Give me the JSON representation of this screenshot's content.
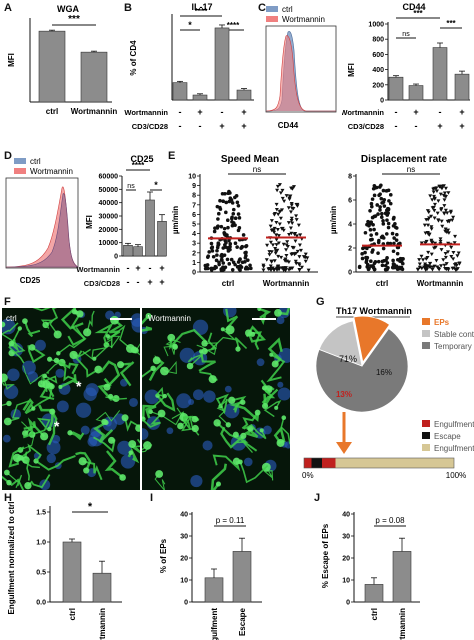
{
  "panels": {
    "A": "A",
    "B": "B",
    "C": "C",
    "D": "D",
    "E": "E",
    "F": "F",
    "G": "G",
    "H": "H",
    "I": "I",
    "J": "J"
  },
  "colors": {
    "bar": "#8c8c8c",
    "ctrl_hist": "#7f9cc5",
    "wort_hist": "#f08080",
    "overlap": "#9a6a8c",
    "pie_temp": "#7a7a7a",
    "pie_stable": "#c4c4c4",
    "pie_ep": "#e8772a",
    "engulf": "#c0201e",
    "escape": "#111111",
    "attempt": "#d6c795",
    "scatter_mean": "#c0201e"
  },
  "panelA": {
    "title": "WGA",
    "ylabel": "MFI",
    "sig": "***",
    "chart_data": {
      "type": "bar",
      "categories": [
        "ctrl",
        "Wortmannin"
      ],
      "values": [
        1080,
        760
      ],
      "errors": [
        15,
        15
      ],
      "ylim": [
        0,
        1250
      ]
    }
  },
  "panelB": {
    "title": "IL-17",
    "ylabel": "% of CD4",
    "row1_label": "Wortmannin",
    "row2_label": "CD3/CD28",
    "row1": [
      "-",
      "+",
      "-",
      "+"
    ],
    "row2": [
      "-",
      "-",
      "+",
      "+"
    ],
    "sig": [
      "****",
      "*",
      "****"
    ],
    "chart_data": {
      "type": "bar",
      "categories": [
        "-/-",
        "+/-",
        "-/+",
        "+/+"
      ],
      "values": [
        7,
        2,
        29,
        4
      ],
      "errors": [
        0.5,
        0.5,
        1.2,
        0.6
      ],
      "ylim": [
        0,
        33
      ]
    }
  },
  "panelC": {
    "legend": [
      "ctrl",
      "Wortmannin"
    ],
    "xlabel": "CD44",
    "title": "CD44",
    "ylabel": "MFI",
    "row1_label": "Wortmannin",
    "row2_label": "CD3/CD28",
    "row1": [
      "-",
      "+",
      "-",
      "+"
    ],
    "row2": [
      "-",
      "-",
      "+",
      "+"
    ],
    "sig": [
      "***",
      "ns",
      "***"
    ],
    "chart_data": {
      "type": "bar",
      "categories": [
        "-/-",
        "+/-",
        "-/+",
        "+/+"
      ],
      "values": [
        300,
        190,
        690,
        340
      ],
      "errors": [
        20,
        20,
        60,
        40
      ],
      "ylim": [
        0,
        1000
      ],
      "yticks": [
        0,
        200,
        400,
        600,
        800,
        1000
      ]
    }
  },
  "panelD": {
    "legend": [
      "ctrl",
      "Wortmannin"
    ],
    "xlabel": "CD25",
    "title": "CD25",
    "ylabel": "MFI",
    "row1_label": "Wortmannin",
    "row2_label": "CD3/CD28",
    "row1": [
      "-",
      "+",
      "-",
      "+"
    ],
    "row2": [
      "-",
      "-",
      "+",
      "+"
    ],
    "sig": [
      "****",
      "ns",
      "*"
    ],
    "chart_data": {
      "type": "bar",
      "categories": [
        "-/-",
        "+/-",
        "-/+",
        "+/+"
      ],
      "values": [
        8000,
        7000,
        42000,
        26000
      ],
      "errors": [
        1500,
        1500,
        6000,
        5000
      ],
      "ylim": [
        0,
        60000
      ],
      "yticks": [
        0,
        10000,
        20000,
        30000,
        40000,
        50000,
        60000
      ]
    }
  },
  "panelE": {
    "speed_title": "Speed Mean",
    "disp_title": "Displacement rate",
    "ylabel": "µm/min",
    "sig": "ns",
    "categories": [
      "ctrl",
      "Wortmannin"
    ],
    "chart_data": [
      {
        "type": "scatter",
        "title": "Speed Mean",
        "categories": [
          "ctrl",
          "Wortmannin"
        ],
        "means": [
          3.5,
          3.6
        ],
        "ylim": [
          0,
          10
        ],
        "yticks": [
          0,
          1,
          2,
          3,
          4,
          5,
          6,
          7,
          8,
          9,
          10
        ]
      },
      {
        "type": "scatter",
        "title": "Displacement rate",
        "categories": [
          "ctrl",
          "Wortmannin"
        ],
        "means": [
          2.2,
          2.3
        ],
        "ylim": [
          0,
          8
        ],
        "yticks": [
          0,
          2,
          4,
          6,
          8
        ]
      }
    ]
  },
  "panelF": {
    "left_label": "ctrl",
    "right_label": "Wortmannin",
    "asterisk": "*"
  },
  "panelG": {
    "title": "Th17 Wortmannin",
    "legend1": [
      "EPs",
      "Stable contact",
      "Temporary contact"
    ],
    "legend2": [
      "Engulfment",
      "Escape",
      "Engulfment attempt"
    ],
    "bar_start": "0%",
    "bar_end": "100%",
    "chart_data": {
      "type": "pie",
      "labels": [
        "Temporary contact",
        "Stable contact",
        "EPs"
      ],
      "values": [
        71,
        16,
        13
      ],
      "display": [
        "71%",
        "16%",
        "13%"
      ]
    }
  },
  "panelH": {
    "ylabel": "Engulfment normalized to ctrl",
    "sig": "*",
    "chart_data": {
      "type": "bar",
      "categories": [
        "ctrl",
        "Wortmannin"
      ],
      "values": [
        1.0,
        0.48
      ],
      "errors": [
        0.05,
        0.2
      ],
      "ylim": [
        0,
        1.5
      ],
      "yticks": [
        0,
        0.5,
        1.0,
        1.5
      ]
    }
  },
  "panelI": {
    "ylabel": "% of EPs",
    "sig": "p = 0.11",
    "chart_data": {
      "type": "bar",
      "categories": [
        "Engulfment",
        "Escape"
      ],
      "values": [
        11,
        23
      ],
      "errors": [
        4,
        6
      ],
      "ylim": [
        0,
        40
      ],
      "yticks": [
        0,
        10,
        20,
        30,
        40
      ]
    }
  },
  "panelJ": {
    "ylabel": "% Escape of EPs",
    "sig": "p = 0.08",
    "chart_data": {
      "type": "bar",
      "categories": [
        "ctrl",
        "Wortmannin"
      ],
      "values": [
        8,
        23
      ],
      "errors": [
        3,
        6
      ],
      "ylim": [
        0,
        40
      ],
      "yticks": [
        0,
        10,
        20,
        30,
        40
      ]
    }
  }
}
